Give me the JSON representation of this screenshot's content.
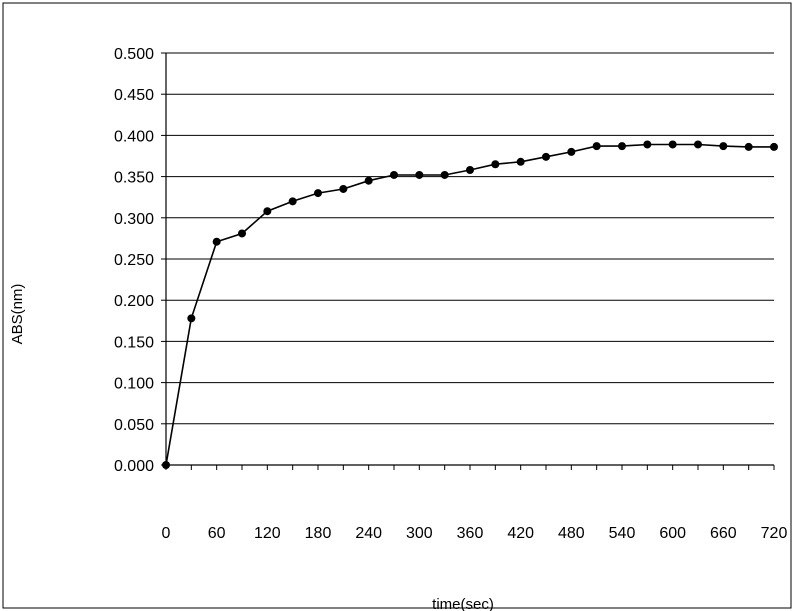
{
  "chart_data": {
    "type": "line",
    "title": "",
    "xlabel": "time(sec)",
    "ylabel": "ABS(nm)",
    "xlim": [
      0,
      720
    ],
    "ylim": [
      0,
      0.5
    ],
    "x_ticks": [
      "0",
      "60",
      "120",
      "180",
      "240",
      "300",
      "360",
      "420",
      "480",
      "540",
      "600",
      "660",
      "720"
    ],
    "y_ticks": [
      "0.000",
      "0.050",
      "0.100",
      "0.150",
      "0.200",
      "0.250",
      "0.300",
      "0.350",
      "0.400",
      "0.450",
      "0.500"
    ],
    "grid": "horizontal",
    "legend": "none",
    "colors": {
      "line": "#000000",
      "marker": "#000000",
      "grid": "#000000",
      "axis": "#000000"
    },
    "series": [
      {
        "x": [
          0,
          30,
          60,
          90,
          120,
          150,
          180,
          210,
          240,
          270,
          300,
          330,
          360,
          390,
          420,
          450,
          480,
          510,
          540,
          570,
          600,
          630,
          660,
          690,
          720
        ],
        "y": [
          0.0,
          0.178,
          0.271,
          0.281,
          0.308,
          0.32,
          0.33,
          0.335,
          0.345,
          0.352,
          0.352,
          0.352,
          0.358,
          0.365,
          0.368,
          0.374,
          0.38,
          0.387,
          0.387,
          0.389,
          0.389,
          0.389,
          0.387,
          0.386,
          0.386
        ]
      }
    ]
  }
}
